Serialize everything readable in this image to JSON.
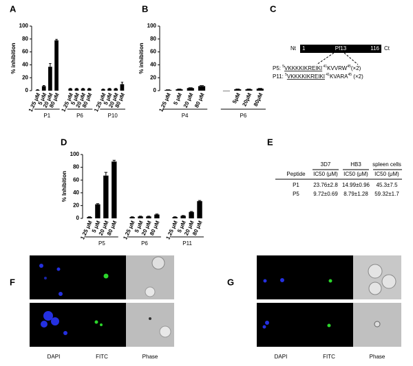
{
  "panel_labels": [
    "A",
    "B",
    "C",
    "D",
    "E",
    "F",
    "G"
  ],
  "chart_data": [
    {
      "type": "grouped-bar",
      "ylabel": "% inhibition",
      "ylim": [
        0,
        100
      ],
      "yticks": [
        0,
        20,
        40,
        60,
        80,
        100
      ],
      "color": "#000000",
      "groups": [
        {
          "name": "P1",
          "categories": [
            "1.25 μM",
            "5 μM",
            "20 μM",
            "80 μM"
          ],
          "values": [
            1,
            7,
            37,
            78
          ],
          "errors": [
            0.5,
            1,
            5,
            1.5
          ]
        },
        {
          "name": "P6",
          "categories": [
            "1.25 μM",
            "5 μM",
            "20 μM",
            "80 μM"
          ],
          "values": [
            3,
            3,
            3,
            3
          ],
          "errors": [
            0.5,
            0.5,
            0.5,
            0.5
          ]
        },
        {
          "name": "P10",
          "categories": [
            "1.25 μM",
            "5 μM",
            "20 μM",
            "80 μM"
          ],
          "values": [
            2,
            3,
            3,
            10
          ],
          "errors": [
            0.5,
            0.5,
            0.5,
            3
          ]
        }
      ]
    },
    {
      "type": "grouped-bar",
      "ylabel": "% inhibition",
      "ylim": [
        0,
        100
      ],
      "yticks": [
        0,
        20,
        40,
        60,
        80,
        100
      ],
      "color": "#000000",
      "groups": [
        {
          "name": "P4",
          "categories": [
            "1.25 μM",
            "5 μM",
            "20 μM",
            "80 μM"
          ],
          "values": [
            1,
            2,
            4,
            7
          ],
          "errors": [
            0.3,
            0.5,
            0.5,
            0.8
          ]
        },
        {
          "name": "P6",
          "categories": [
            null,
            "5μM",
            "20μM",
            "80μM"
          ],
          "values": [
            0,
            2,
            2,
            3
          ],
          "errors": [
            0,
            0.5,
            0.5,
            0.5
          ]
        }
      ]
    },
    {
      "type": "grouped-bar",
      "ylabel": "% Inhibition",
      "ylim": [
        0,
        100
      ],
      "yticks": [
        0,
        20,
        40,
        60,
        80,
        100
      ],
      "color": "#000000",
      "groups": [
        {
          "name": "P5",
          "categories": [
            "1.25 μM",
            "5 μM",
            "20 μM",
            "80 μM"
          ],
          "values": [
            2,
            22,
            67,
            89
          ],
          "errors": [
            0.5,
            1,
            5,
            2
          ]
        },
        {
          "name": "P6",
          "categories": [
            "1.25 μM",
            "5 μM",
            "20 μM",
            "80 μM"
          ],
          "values": [
            2,
            3,
            3,
            6
          ],
          "errors": [
            0.5,
            0.5,
            0.5,
            0.8
          ]
        },
        {
          "name": "P11",
          "categories": [
            "1.25 μM",
            "5 μM",
            "20 μM",
            "80 μM"
          ],
          "values": [
            2,
            4,
            10,
            27
          ],
          "errors": [
            0.5,
            0.5,
            0.8,
            1
          ]
        }
      ]
    }
  ],
  "diagram": {
    "nt": "Nt",
    "start": "1",
    "name": "Pf13",
    "end": "116",
    "ct": "Ct",
    "peptides": [
      [
        "P5: ",
        "5",
        "VKKKKIKREIKI",
        " 41",
        "KVVRW",
        "45",
        "(×2)"
      ],
      [
        "P11: ",
        "5",
        "VKKKKIKREIKI",
        " 41",
        "KVARA",
        "45",
        " (×2)"
      ]
    ]
  },
  "table": {
    "header": [
      [
        "",
        "3D7",
        "HB3",
        "spleen cells"
      ],
      [
        "Peptide",
        "IC50 (μM)",
        "IC50 (μM)",
        "IC50 (μM)"
      ]
    ],
    "rows": [
      [
        "P1",
        "23.76±2.8",
        "14.99±0.96",
        "45.3±7.5"
      ],
      [
        "P5",
        "9.72±0.69",
        "8.79±1.28",
        "59.32±1.7"
      ]
    ]
  },
  "images": {
    "F": [
      "DAPI",
      "FITC",
      "Phase"
    ],
    "G": [
      "DAPI",
      "FITC",
      "Phase"
    ]
  }
}
